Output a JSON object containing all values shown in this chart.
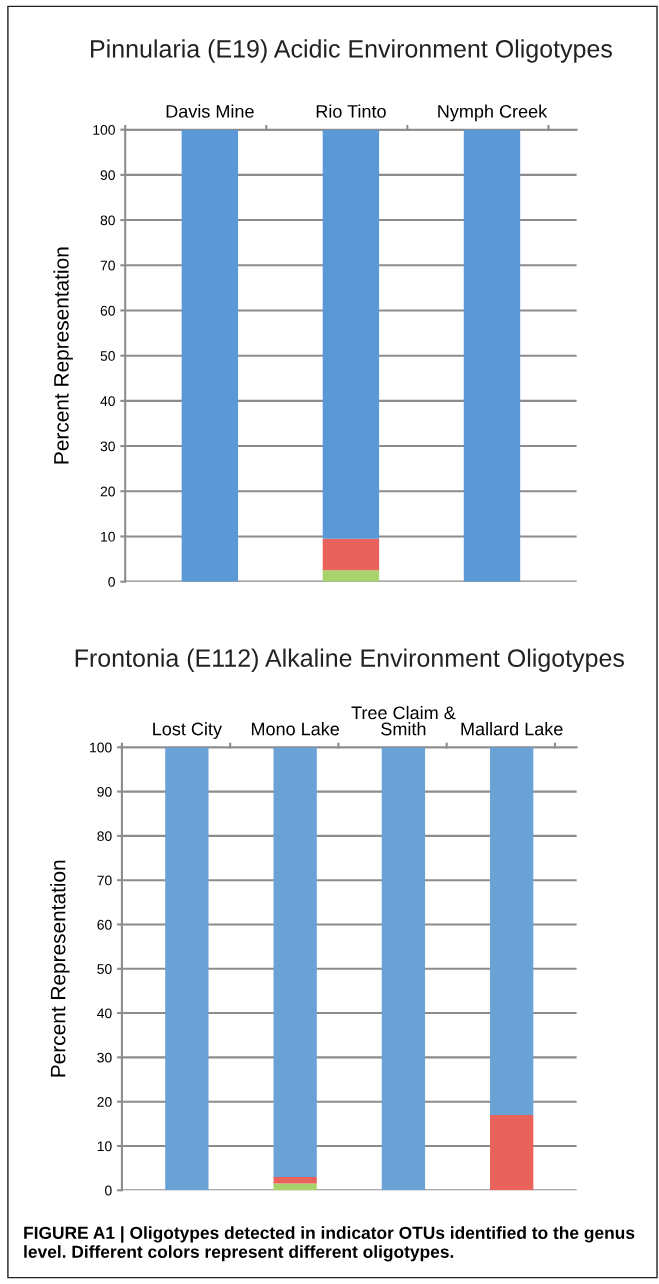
{
  "chart_data": [
    {
      "type": "bar",
      "title": "Pinnularia (E19) Acidic Environment Oligotypes",
      "ylabel": "Percent Representation",
      "categories": [
        "Davis Mine",
        "Rio Tinto",
        "Nymph Creek"
      ],
      "stacked": true,
      "series": [
        {
          "color": "#a8d36c",
          "values": [
            0,
            2.5,
            0
          ]
        },
        {
          "color": "#e9625c",
          "values": [
            0,
            7,
            0
          ]
        },
        {
          "color": "#5b98d6",
          "values": [
            100,
            90.5,
            100
          ]
        }
      ],
      "ylim": [
        0,
        100
      ],
      "yticks": [
        0,
        10,
        20,
        30,
        40,
        50,
        60,
        70,
        80,
        90,
        100
      ],
      "grid": "y"
    },
    {
      "type": "bar",
      "title": "Frontonia (E112) Alkaline Environment Oligotypes",
      "ylabel": "Percent Representation",
      "categories": [
        "Lost City",
        "Mono Lake",
        "Tree Claim &\nSmith",
        "Mallard Lake"
      ],
      "stacked": true,
      "series": [
        {
          "color": "#a8d36c",
          "values": [
            0,
            1.5,
            0,
            0
          ]
        },
        {
          "color": "#e9625c",
          "values": [
            0,
            1.5,
            0,
            17
          ]
        },
        {
          "color": "#6aa2d6",
          "values": [
            100,
            97,
            100,
            83
          ]
        }
      ],
      "ylim": [
        0,
        100
      ],
      "yticks": [
        0,
        10,
        20,
        30,
        40,
        50,
        60,
        70,
        80,
        90,
        100
      ],
      "grid": "y",
      "annotations": [
        "FIGURE A1 | Oligotypes detected in indicator OTUs identified to the genus level. Different colors represent different oligotypes."
      ]
    }
  ]
}
